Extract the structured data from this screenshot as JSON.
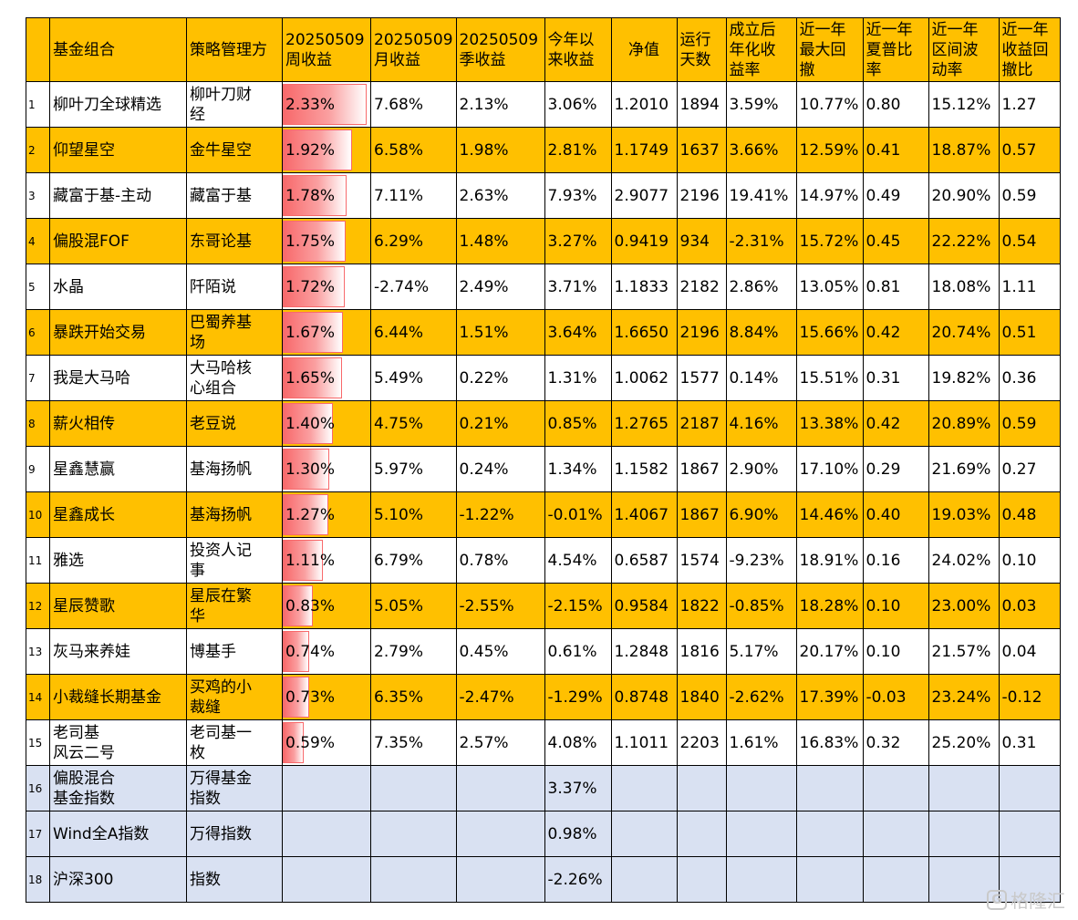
{
  "headers": {
    "idx": "",
    "name": "基金组合",
    "manager": "策略管理方",
    "week": "20250509\n周收益",
    "month": "20250509\n月收益",
    "quarter": "20250509\n季收益",
    "ytd": "今年以\n来收益",
    "nav": "净值",
    "days": "运行\n天数",
    "annual": "成立后\n年化收\n益率",
    "maxdd": "近一年\n最大回\n撤",
    "sharpe": "近一年\n夏普比\n率",
    "vol": "近一年\n区间波\n动率",
    "calmar": "近一年\n收益回\n撤比"
  },
  "week_return_max": 2.33,
  "rows": [
    {
      "idx": "1",
      "name": "柳叶刀全球精选",
      "manager": "柳叶刀财\n经",
      "week": "2.33%",
      "week_value": 2.33,
      "month": "7.68%",
      "quarter": "2.13%",
      "ytd": "3.06%",
      "nav": "1.2010",
      "days": "1894",
      "annual": "3.59%",
      "maxdd": "10.77%",
      "sharpe": "0.80",
      "vol": "15.12%",
      "calmar": "1.27"
    },
    {
      "idx": "2",
      "name": "仰望星空",
      "manager": "金牛星空",
      "week": "1.92%",
      "week_value": 1.92,
      "month": "6.58%",
      "quarter": "1.98%",
      "ytd": "2.81%",
      "nav": "1.1749",
      "days": "1637",
      "annual": "3.66%",
      "maxdd": "12.59%",
      "sharpe": "0.41",
      "vol": "18.87%",
      "calmar": "0.57"
    },
    {
      "idx": "3",
      "name": "藏富于基-主动",
      "manager": "藏富于基",
      "week": "1.78%",
      "week_value": 1.78,
      "month": "7.11%",
      "quarter": "2.63%",
      "ytd": "7.93%",
      "nav": "2.9077",
      "days": "2196",
      "annual": "19.41%",
      "maxdd": "14.97%",
      "sharpe": "0.49",
      "vol": "20.90%",
      "calmar": "0.59"
    },
    {
      "idx": "4",
      "name": "偏股混FOF",
      "manager": "东哥论基",
      "week": "1.75%",
      "week_value": 1.75,
      "month": "6.29%",
      "quarter": "1.48%",
      "ytd": "3.27%",
      "nav": "0.9419",
      "days": "934",
      "annual": "-2.31%",
      "maxdd": "15.72%",
      "sharpe": "0.45",
      "vol": "22.22%",
      "calmar": "0.54"
    },
    {
      "idx": "5",
      "name": "水晶",
      "manager": "阡陌说",
      "week": "1.72%",
      "week_value": 1.72,
      "month": "-2.74%",
      "quarter": "2.49%",
      "ytd": "3.71%",
      "nav": "1.1833",
      "days": "2182",
      "annual": "2.86%",
      "maxdd": "13.05%",
      "sharpe": "0.81",
      "vol": "18.08%",
      "calmar": "1.11"
    },
    {
      "idx": "6",
      "name": "暴跌开始交易",
      "manager": "巴蜀养基\n场",
      "week": "1.67%",
      "week_value": 1.67,
      "month": "6.44%",
      "quarter": "1.51%",
      "ytd": "3.64%",
      "nav": "1.6650",
      "days": "2196",
      "annual": "8.84%",
      "maxdd": "15.66%",
      "sharpe": "0.42",
      "vol": "20.74%",
      "calmar": "0.51"
    },
    {
      "idx": "7",
      "name": "我是大马哈",
      "manager": "大马哈核\n心组合",
      "week": "1.65%",
      "week_value": 1.65,
      "month": "5.49%",
      "quarter": "0.22%",
      "ytd": "1.31%",
      "nav": "1.0062",
      "days": "1577",
      "annual": "0.14%",
      "maxdd": "15.51%",
      "sharpe": "0.31",
      "vol": "19.82%",
      "calmar": "0.36"
    },
    {
      "idx": "8",
      "name": "薪火相传",
      "manager": "老豆说",
      "week": "1.40%",
      "week_value": 1.4,
      "month": "4.75%",
      "quarter": "0.21%",
      "ytd": "0.85%",
      "nav": "1.2765",
      "days": "2187",
      "annual": "4.16%",
      "maxdd": "13.38%",
      "sharpe": "0.42",
      "vol": "20.89%",
      "calmar": "0.59"
    },
    {
      "idx": "9",
      "name": "星鑫慧赢",
      "manager": "基海扬帆",
      "week": "1.30%",
      "week_value": 1.3,
      "month": "5.97%",
      "quarter": "0.24%",
      "ytd": "1.34%",
      "nav": "1.1582",
      "days": "1867",
      "annual": "2.90%",
      "maxdd": "17.10%",
      "sharpe": "0.29",
      "vol": "21.69%",
      "calmar": "0.27"
    },
    {
      "idx": "10",
      "name": "星鑫成长",
      "manager": "基海扬帆",
      "week": "1.27%",
      "week_value": 1.27,
      "month": "5.10%",
      "quarter": "-1.22%",
      "ytd": "-0.01%",
      "nav": "1.4067",
      "days": "1867",
      "annual": "6.90%",
      "maxdd": "14.46%",
      "sharpe": "0.40",
      "vol": "19.03%",
      "calmar": "0.48"
    },
    {
      "idx": "11",
      "name": "雅选",
      "manager": "投资人记\n事",
      "week": "1.11%",
      "week_value": 1.11,
      "month": "6.79%",
      "quarter": "0.78%",
      "ytd": "4.54%",
      "nav": "0.6587",
      "days": "1574",
      "annual": "-9.23%",
      "maxdd": "18.91%",
      "sharpe": "0.16",
      "vol": "24.02%",
      "calmar": "0.10"
    },
    {
      "idx": "12",
      "name": "星辰赞歌",
      "manager": "星辰在繁\n华",
      "week": "0.83%",
      "week_value": 0.83,
      "month": "5.05%",
      "quarter": "-2.55%",
      "ytd": "-2.15%",
      "nav": "0.9584",
      "days": "1822",
      "annual": "-0.85%",
      "maxdd": "18.28%",
      "sharpe": "0.10",
      "vol": "23.00%",
      "calmar": "0.03"
    },
    {
      "idx": "13",
      "name": "灰马来养娃",
      "manager": "博基手",
      "week": "0.74%",
      "week_value": 0.74,
      "month": "2.79%",
      "quarter": "0.45%",
      "ytd": "0.61%",
      "nav": "1.2848",
      "days": "1816",
      "annual": "5.17%",
      "maxdd": "20.17%",
      "sharpe": "0.10",
      "vol": "21.57%",
      "calmar": "0.04"
    },
    {
      "idx": "14",
      "name": "小裁缝长期基金",
      "manager": "买鸡的小\n裁缝",
      "week": "0.73%",
      "week_value": 0.73,
      "month": "6.35%",
      "quarter": "-2.47%",
      "ytd": "-1.29%",
      "nav": "0.8748",
      "days": "1840",
      "annual": "-2.62%",
      "maxdd": "17.39%",
      "sharpe": "-0.03",
      "vol": "23.24%",
      "calmar": "-0.12"
    },
    {
      "idx": "15",
      "name": "老司基\n风云二号",
      "manager": "老司基一\n枚",
      "week": "0.59%",
      "week_value": 0.59,
      "month": "7.35%",
      "quarter": "2.57%",
      "ytd": "4.08%",
      "nav": "1.1011",
      "days": "2203",
      "annual": "1.61%",
      "maxdd": "16.83%",
      "sharpe": "0.32",
      "vol": "25.20%",
      "calmar": "0.31"
    }
  ],
  "benchmarks": [
    {
      "idx": "16",
      "name": "偏股混合\n基金指数",
      "manager": "万得基金\n指数",
      "ytd": "3.37%"
    },
    {
      "idx": "17",
      "name": "Wind全A指数",
      "manager": "万得指数",
      "ytd": "0.98%"
    },
    {
      "idx": "18",
      "name": "沪深300",
      "manager": "指数",
      "ytd": "-2.26%"
    }
  ],
  "watermark": {
    "logo_glyph": "G",
    "text": "格隆汇"
  },
  "colors": {
    "row_highlight": "#FFC000",
    "benchmark_row": "#D9E1F2",
    "bar_red": "#F8696B"
  }
}
